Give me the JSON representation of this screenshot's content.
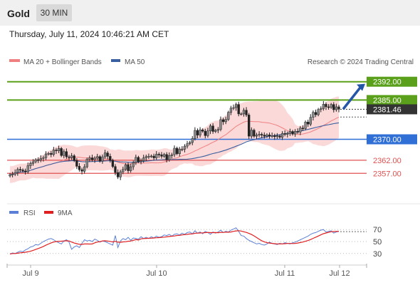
{
  "header": {
    "asset": "Gold",
    "timeframe": "30 MIN"
  },
  "timestamp": "Thursday, July 11, 2024 10:46:21 AM CET",
  "legend": {
    "ma20": "MA 20 + Bollinger Bands",
    "ma50": "MA 50",
    "credit": "Research © 2024 Trading Central"
  },
  "rsi_legend": {
    "rsi": "RSI",
    "ma9": "9MA"
  },
  "colors": {
    "resistance": "#5aa01a",
    "support": "#e05050",
    "pivot": "#2f6fd6",
    "price_tag": "#333333",
    "ma20": "#f08080",
    "ma50": "#3a5fa0",
    "band": "#fbd9d9",
    "arrow": "#2456a8",
    "rsi": "#5b7fd6",
    "rsi_ma": "#e02020"
  },
  "chart_data": [
    {
      "type": "candlestick",
      "x_tick_labels": [
        "Jul 9",
        "Jul 10",
        "Jul 11",
        "Jul 12"
      ],
      "y_range": [
        2347,
        2396
      ],
      "current_price": 2381.46,
      "levels": [
        {
          "value": 2392.0,
          "label": "2392.00",
          "kind": "resistance"
        },
        {
          "value": 2385.0,
          "label": "2385.00",
          "kind": "resistance"
        },
        {
          "value": 2381.46,
          "label": "2381.46",
          "kind": "price"
        },
        {
          "value": 2370.0,
          "label": "2370.00",
          "kind": "pivot"
        },
        {
          "value": 2362.0,
          "label": "2362.00",
          "kind": "support"
        },
        {
          "value": 2357.0,
          "label": "2357.00",
          "kind": "support"
        }
      ],
      "close": [
        2356.5,
        2356.7,
        2357.3,
        2358.5,
        2358.3,
        2357.9,
        2357.6,
        2359.9,
        2360.8,
        2361.4,
        2362.2,
        2362.0,
        2362.7,
        2363.0,
        2364.4,
        2364.6,
        2364.2,
        2365.9,
        2365.6,
        2366.5,
        2363.8,
        2365.3,
        2363.3,
        2363.0,
        2363.7,
        2361.9,
        2359.7,
        2358.4,
        2357.8,
        2359.5,
        2362.4,
        2362.9,
        2362.2,
        2362.8,
        2363.4,
        2361.7,
        2363.3,
        2364.8,
        2363.5,
        2362.0,
        2359.6,
        2357.3,
        2355.6,
        2357.6,
        2358.5,
        2360.3,
        2358.0,
        2359.5,
        2361.1,
        2363.1,
        2361.5,
        2361.8,
        2362.9,
        2363.4,
        2363.5,
        2363.6,
        2362.9,
        2364.3,
        2364.1,
        2363.5,
        2364.2,
        2362.2,
        2363.8,
        2364.1,
        2366.6,
        2364.5,
        2366.2,
        2366.2,
        2367.4,
        2368.3,
        2368.8,
        2370.3,
        2373.4,
        2371.6,
        2373.6,
        2373.1,
        2371.4,
        2373.2,
        2375.1,
        2373.0,
        2373.4,
        2373.8,
        2377.5,
        2376.7,
        2377.6,
        2380.3,
        2381.9,
        2382.1,
        2383.3,
        2379.7,
        2379.7,
        2381.1,
        2379.3,
        2371.2,
        2373.5,
        2371.2,
        2371.6,
        2371.9,
        2371.6,
        2371.2,
        2371.7,
        2371.3,
        2371.4,
        2371.0,
        2371.3,
        2370.8,
        2372.2,
        2371.9,
        2372.2,
        2373.0,
        2372.0,
        2373.0,
        2372.8,
        2374.3,
        2374.1,
        2376.6,
        2375.8,
        2378.4,
        2380.3,
        2379.4,
        2381.4,
        2381.7,
        2383.4,
        2382.4,
        2382.2,
        2383.3,
        2381.3,
        2382.4,
        2381.5
      ],
      "rsi": [
        29,
        31,
        30,
        32,
        34,
        33,
        36,
        38,
        41,
        42,
        45,
        44,
        47,
        50,
        52,
        54,
        55,
        53,
        50,
        48,
        46,
        51,
        53,
        49,
        37,
        41,
        43,
        40,
        47,
        53,
        51,
        52,
        50,
        54,
        52,
        49,
        51,
        50,
        48,
        46,
        44,
        60,
        40,
        51,
        55,
        53,
        57,
        52,
        56,
        55,
        54,
        58,
        55,
        57,
        55,
        58,
        56,
        59,
        57,
        58,
        61,
        60,
        62,
        59,
        62,
        63,
        61,
        64,
        62,
        65,
        66,
        63,
        68,
        64,
        66,
        63,
        67,
        65,
        62,
        66,
        64,
        66,
        69,
        65,
        67,
        66,
        69,
        71,
        73,
        67,
        60,
        59,
        55,
        52,
        50,
        48,
        46,
        47,
        45,
        44,
        46,
        49,
        47,
        46,
        45,
        47,
        46,
        48,
        47,
        46,
        48,
        49,
        51,
        53,
        55,
        57,
        59,
        62,
        64,
        65,
        67,
        69,
        70,
        66,
        67,
        68,
        64,
        66,
        67
      ],
      "rsi_ticks": [
        70,
        50,
        30
      ]
    }
  ]
}
